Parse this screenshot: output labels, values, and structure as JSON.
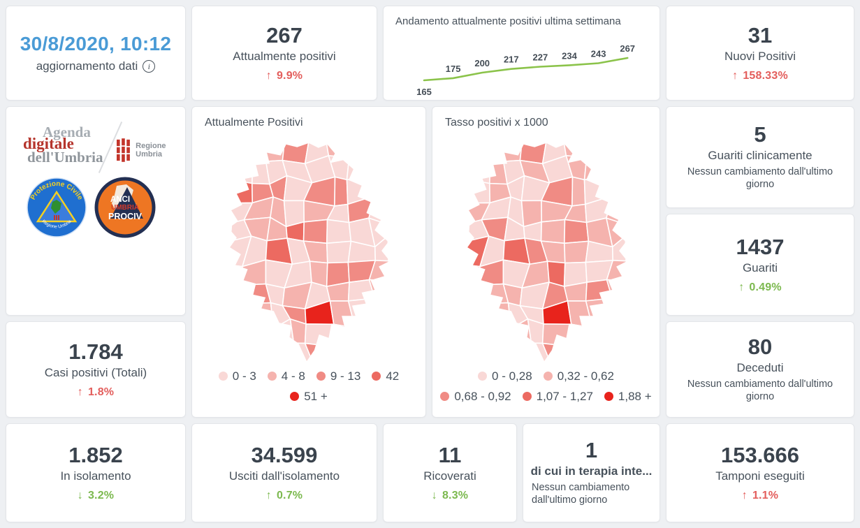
{
  "theme": {
    "accent_blue": "#4a9bd6",
    "delta_red": "#e35e5c",
    "delta_green": "#7cb94f",
    "line_green": "#8bc34a",
    "text_dark": "#3a434d",
    "map_palette": [
      "#f9d8d6",
      "#f5b3ae",
      "#f08b84",
      "#ec6a61",
      "#e8231c"
    ]
  },
  "header": {
    "date": "30/8/2020, 10:12",
    "label": "aggiornamento dati"
  },
  "kpis": {
    "attualmente": {
      "value": "267",
      "label": "Attualmente positivi",
      "arrow": "↑",
      "delta": "9.9%"
    },
    "nuovi": {
      "value": "31",
      "label": "Nuovi Positivi",
      "arrow": "↑",
      "delta": "158.33%"
    },
    "guariti_clinicamente": {
      "value": "5",
      "label": "Guariti clinicamente",
      "note": "Nessun cambiamento dall'ultimo giorno"
    },
    "guariti": {
      "value": "1437",
      "label": "Guariti",
      "arrow": "↑",
      "delta": "0.49%"
    },
    "deceduti": {
      "value": "80",
      "label": "Deceduti",
      "note": "Nessun cambiamento dall'ultimo giorno"
    },
    "casi_totali": {
      "value": "1.784",
      "label": "Casi positivi (Totali)",
      "arrow": "↑",
      "delta": "1.8%"
    },
    "isolamento": {
      "value": "1.852",
      "label": "In isolamento",
      "arrow": "↓",
      "delta": "3.2%"
    },
    "usciti_isolamento": {
      "value": "34.599",
      "label": "Usciti dall'isolamento",
      "arrow": "↑",
      "delta": "0.7%"
    },
    "ricoverati": {
      "value": "11",
      "label": "Ricoverati",
      "arrow": "↓",
      "delta": "8.3%"
    },
    "terapia_intensiva": {
      "value": "1",
      "label": "di cui in terapia inte...",
      "note": "Nessun cambiamento dall'ultimo giorno"
    },
    "tamponi": {
      "value": "153.666",
      "label": "Tamponi eseguiti",
      "arrow": "↑",
      "delta": "1.1%"
    }
  },
  "trend": {
    "title": "Andamento attualmente positivi ultima settimana",
    "values": [
      165,
      175,
      200,
      217,
      227,
      234,
      243,
      267
    ]
  },
  "maps": {
    "attualmente": {
      "title": "Attualmente Positivi",
      "legend": [
        {
          "label": "0 - 3",
          "color": "#f9d8d6"
        },
        {
          "label": "4 - 8",
          "color": "#f5b3ae"
        },
        {
          "label": "9 - 13",
          "color": "#f08b84"
        },
        {
          "label": "42",
          "color": "#ec6a61"
        },
        {
          "label": "51 +",
          "color": "#e8231c"
        }
      ]
    },
    "tasso": {
      "title": "Tasso positivi x 1000",
      "legend": [
        {
          "label": "0 - 0,28",
          "color": "#f9d8d6"
        },
        {
          "label": "0,32 - 0,62",
          "color": "#f5b3ae"
        },
        {
          "label": "0,68 - 0,92",
          "color": "#f08b84"
        },
        {
          "label": "1,07 - 1,27",
          "color": "#ec6a61"
        },
        {
          "label": "1,88 +",
          "color": "#e8231c"
        }
      ]
    }
  },
  "logos": {
    "agenda_line1": "Agenda",
    "agenda_line2": "digitale",
    "agenda_line3": "dell'Umbria",
    "regione": "Regione Umbria",
    "protezione_top": "Protezione Civile",
    "protezione_bottom": "Regione Umbria",
    "anci_line1": "ANCI",
    "anci_line2": "UMBRIA",
    "anci_line3": "PROCIV"
  },
  "chart_data": [
    {
      "type": "line",
      "title": "Andamento attualmente positivi ultima settimana",
      "x": [
        1,
        2,
        3,
        4,
        5,
        6,
        7,
        8
      ],
      "values": [
        165,
        175,
        200,
        217,
        227,
        234,
        243,
        267
      ],
      "line_color": "#8bc34a",
      "data_labels": true,
      "grid": false,
      "legend_position": "none"
    },
    {
      "type": "heatmap",
      "subtype": "choropleth",
      "title": "Attualmente Positivi",
      "bins": [
        "0 - 3",
        "4 - 8",
        "9 - 13",
        "42",
        "51 +"
      ],
      "bin_colors": [
        "#f9d8d6",
        "#f5b3ae",
        "#f08b84",
        "#ec6a61",
        "#e8231c"
      ],
      "region": "Umbria municipalities"
    },
    {
      "type": "heatmap",
      "subtype": "choropleth",
      "title": "Tasso positivi x 1000",
      "bins": [
        "0 - 0,28",
        "0,32 - 0,62",
        "0,68 - 0,92",
        "1,07 - 1,27",
        "1,88 +"
      ],
      "bin_colors": [
        "#f9d8d6",
        "#f5b3ae",
        "#f08b84",
        "#ec6a61",
        "#e8231c"
      ],
      "region": "Umbria municipalities"
    }
  ]
}
